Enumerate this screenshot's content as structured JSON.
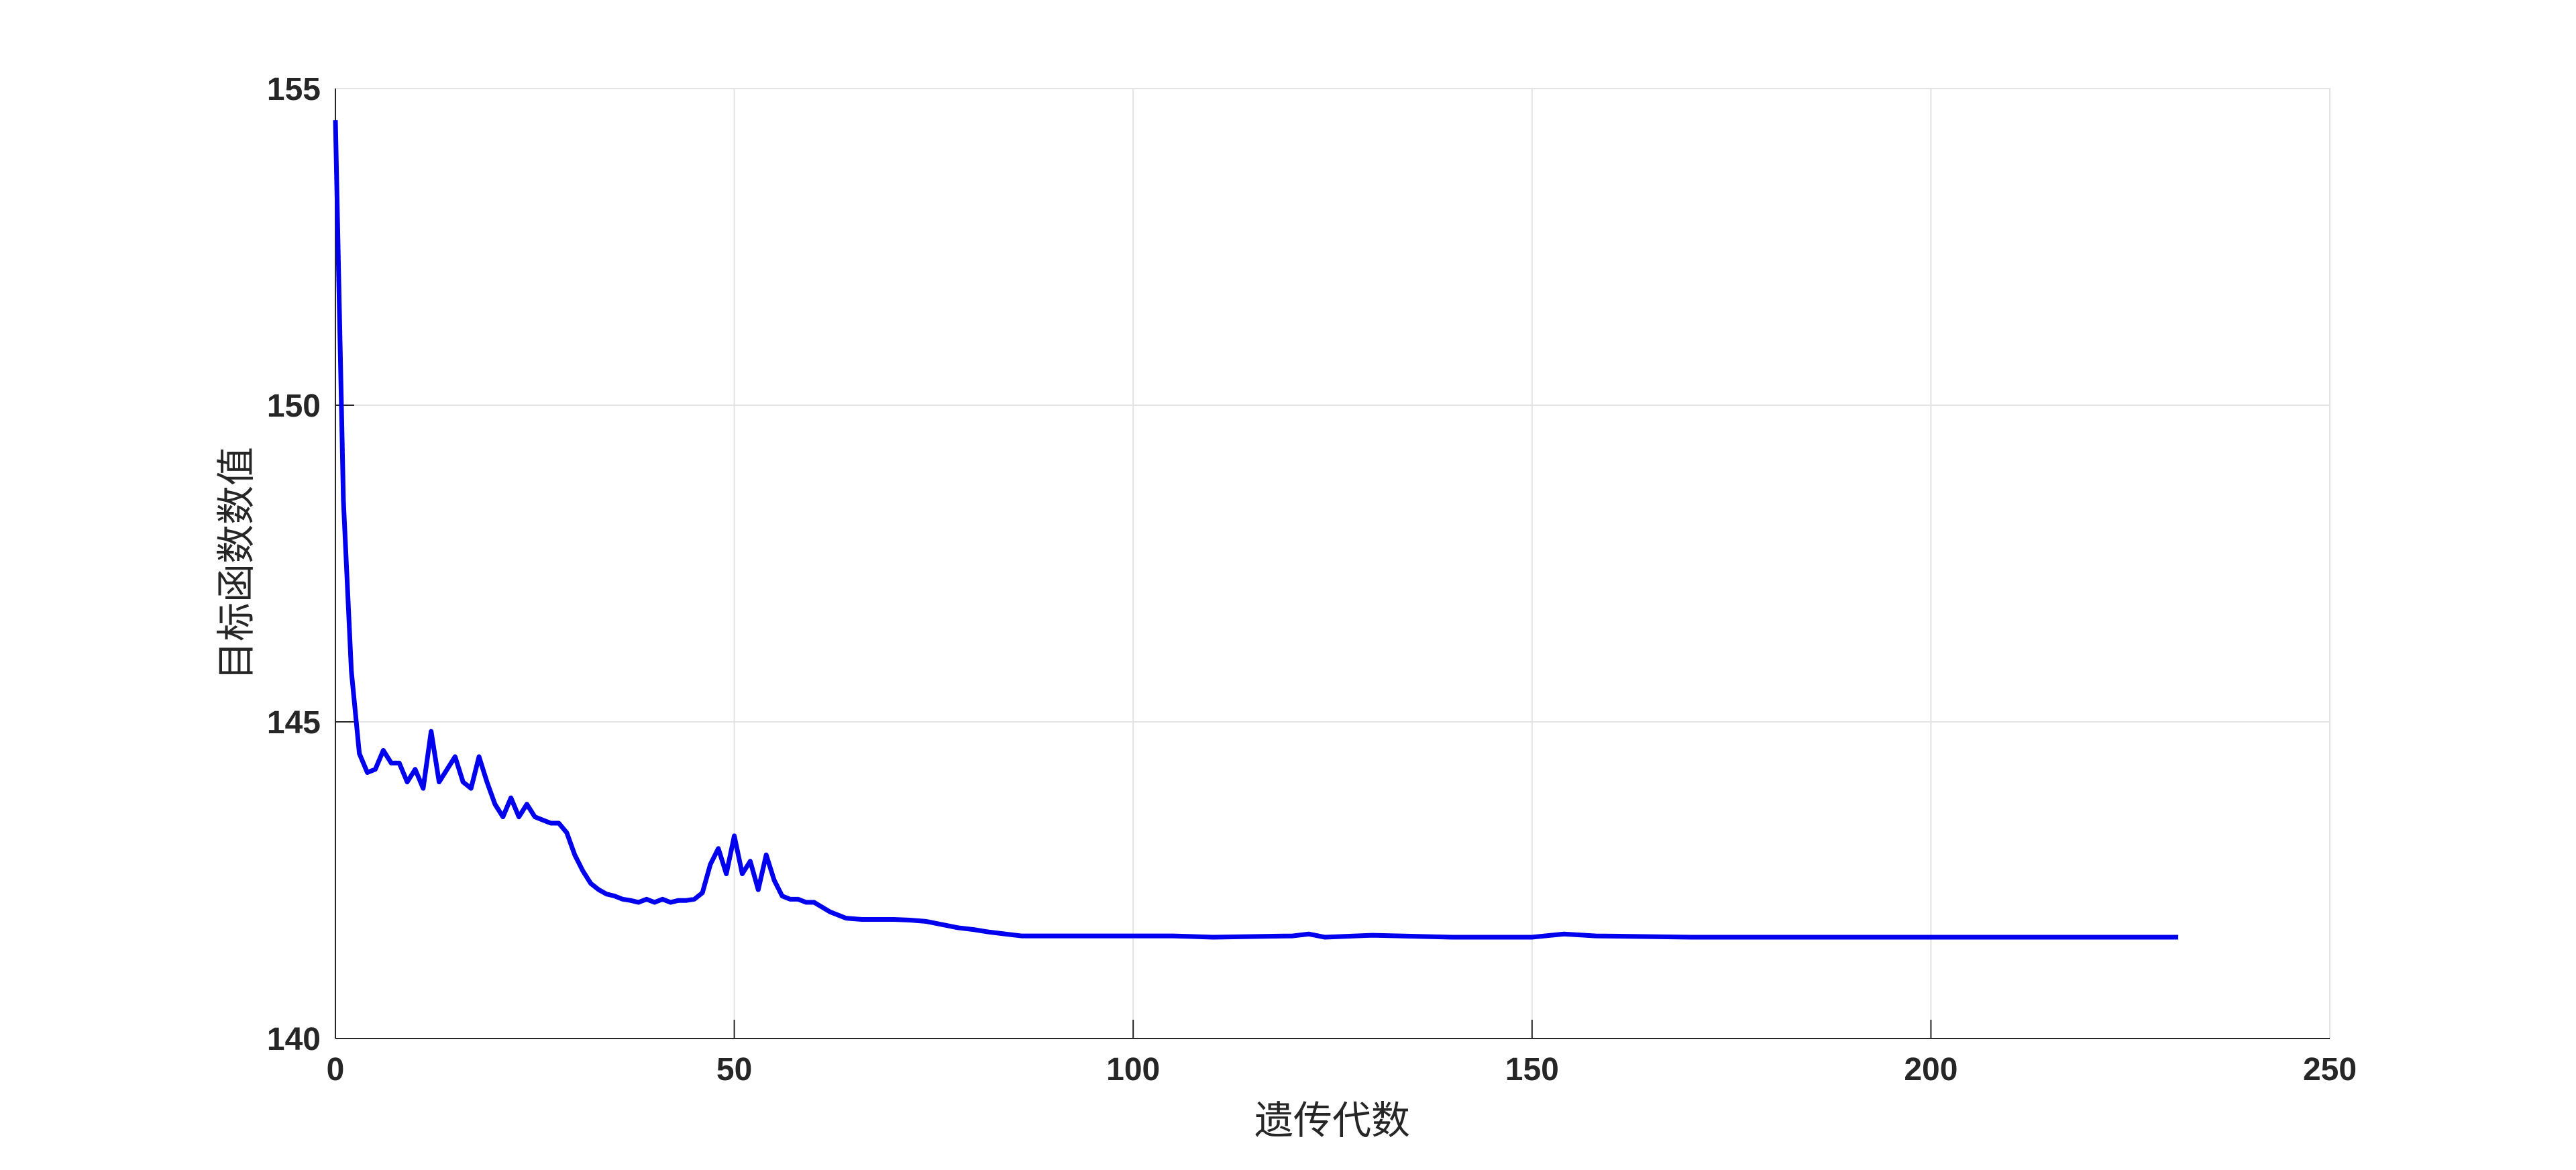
{
  "chart_data": {
    "type": "line",
    "xlabel": "遗传代数",
    "ylabel": "目标函数数值",
    "x": [
      0,
      1,
      2,
      3,
      4,
      5,
      6,
      7,
      8,
      9,
      10,
      11,
      12,
      13,
      14,
      15,
      16,
      17,
      18,
      19,
      20,
      21,
      22,
      23,
      24,
      25,
      26,
      27,
      28,
      29,
      30,
      31,
      32,
      33,
      34,
      35,
      36,
      37,
      38,
      39,
      40,
      41,
      42,
      43,
      44,
      45,
      46,
      47,
      48,
      49,
      50,
      51,
      52,
      53,
      54,
      55,
      56,
      57,
      58,
      59,
      60,
      62,
      64,
      66,
      68,
      70,
      72,
      74,
      76,
      78,
      80,
      82,
      84,
      86,
      90,
      95,
      100,
      105,
      110,
      120,
      122,
      124,
      130,
      140,
      150,
      154,
      158,
      170,
      180,
      190,
      200,
      210,
      220,
      231
    ],
    "series": [
      {
        "color": "#0000ee",
        "values": [
          154.5,
          148.5,
          145.8,
          144.5,
          144.2,
          144.25,
          144.55,
          144.35,
          144.35,
          144.05,
          144.25,
          143.95,
          144.85,
          144.05,
          144.25,
          144.45,
          144.05,
          143.95,
          144.45,
          144.05,
          143.7,
          143.5,
          143.8,
          143.5,
          143.7,
          143.5,
          143.45,
          143.4,
          143.4,
          143.25,
          142.9,
          142.65,
          142.45,
          142.35,
          142.28,
          142.25,
          142.2,
          142.18,
          142.15,
          142.2,
          142.15,
          142.2,
          142.15,
          142.18,
          142.18,
          142.2,
          142.3,
          142.75,
          143.0,
          142.6,
          143.2,
          142.6,
          142.8,
          142.35,
          142.9,
          142.5,
          142.25,
          142.2,
          142.2,
          142.15,
          142.15,
          142.0,
          141.9,
          141.88,
          141.88,
          141.88,
          141.87,
          141.85,
          141.8,
          141.75,
          141.72,
          141.68,
          141.65,
          141.62,
          141.62,
          141.62,
          141.62,
          141.62,
          141.6,
          141.62,
          141.65,
          141.6,
          141.63,
          141.6,
          141.6,
          141.65,
          141.62,
          141.6,
          141.6,
          141.6,
          141.6,
          141.6,
          141.6,
          141.6
        ]
      }
    ],
    "xlim": [
      0,
      250
    ],
    "xticks": [
      0,
      50,
      100,
      150,
      200,
      250
    ],
    "ylim": [
      140,
      155
    ],
    "yticks": [
      140,
      145,
      150,
      155
    ],
    "grid": true
  }
}
